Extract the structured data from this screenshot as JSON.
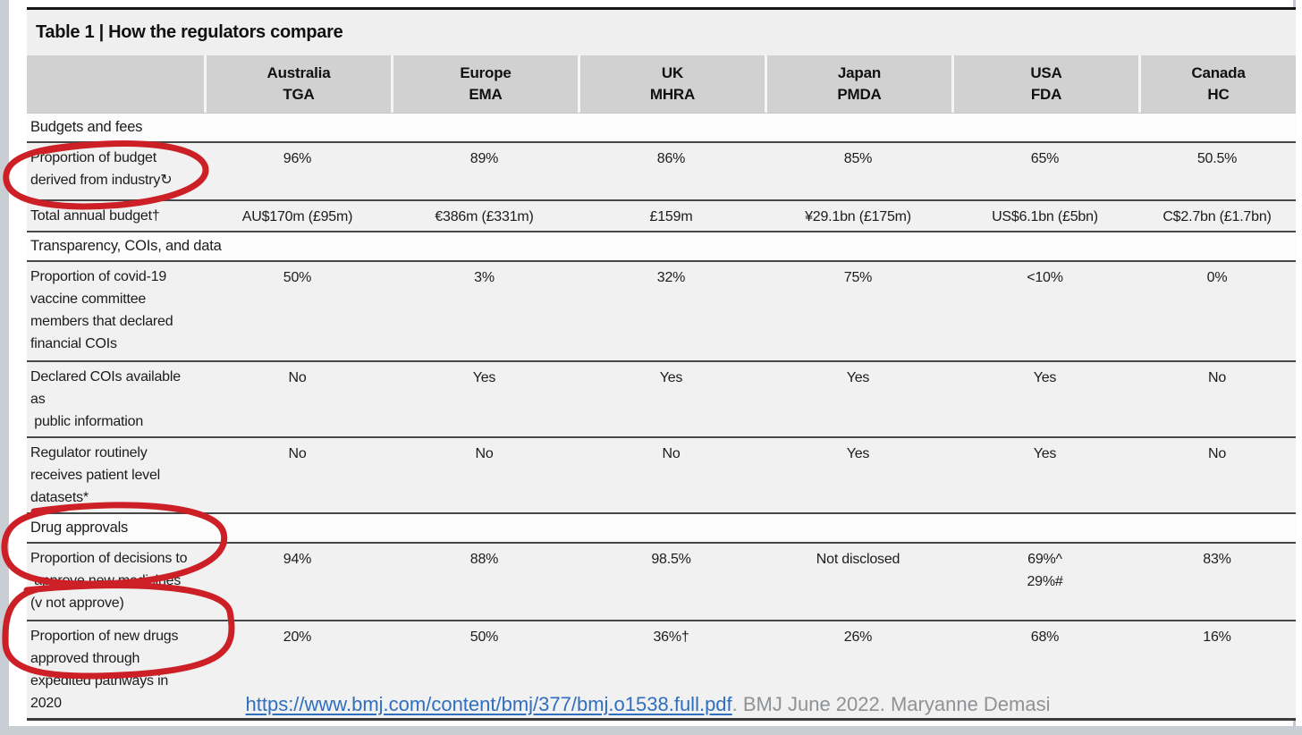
{
  "page": {
    "title": "Table 1 | How the regulators compare",
    "footer": {
      "link_text": "https://www.bmj.com/content/bmj/377/bmj.o1538.full.pdf",
      "suffix_text": ".  BMJ  June 2022. Maryanne Demasi"
    },
    "annotation_color": "#cd2026"
  },
  "table": {
    "columns": [
      {
        "country": "Australia",
        "agency": "TGA"
      },
      {
        "country": "Europe",
        "agency": "EMA"
      },
      {
        "country": "UK",
        "agency": "MHRA"
      },
      {
        "country": "Japan",
        "agency": "PMDA"
      },
      {
        "country": "USA",
        "agency": "FDA"
      },
      {
        "country": "Canada",
        "agency": "HC"
      }
    ],
    "sections": [
      {
        "label": "Budgets and fees",
        "rows": [
          {
            "label": "Proportion of budget\nderived from industry↻",
            "values": [
              "96%",
              "89%",
              "86%",
              "85%",
              "65%",
              "50.5%"
            ],
            "circled": true
          },
          {
            "label": "Total annual budget†",
            "values": [
              "AU$170m (£95m)",
              "€386m (£331m)",
              "£159m",
              "¥29.1bn (£175m)",
              "US$6.1bn (£5bn)",
              "C$2.7bn (£1.7bn)"
            ],
            "circled": false
          }
        ]
      },
      {
        "label": "Transparency, COIs, and data",
        "rows": [
          {
            "label": "Proportion of covid-19\nvaccine committee\nmembers that declared\nfinancial COIs",
            "values": [
              "50%",
              "3%",
              "32%",
              "75%",
              "<10%",
              "0%"
            ],
            "circled": false
          },
          {
            "label": "Declared COIs available as\n public information",
            "values": [
              "No",
              "Yes",
              "Yes",
              "Yes",
              "Yes",
              "No"
            ],
            "circled": false
          },
          {
            "label": "Regulator routinely\nreceives patient level\ndatasets*",
            "values": [
              "No",
              "No",
              "No",
              "Yes",
              "Yes",
              "No"
            ],
            "circled": false
          }
        ]
      },
      {
        "label": "Drug approvals",
        "rows": [
          {
            "label": "Proportion of decisions to\n approve new medicines\n(v not approve)",
            "values": [
              "94%",
              "88%",
              "98.5%",
              "Not disclosed",
              "69%^\n29%#",
              "83%"
            ],
            "circled": true
          },
          {
            "label": "Proportion of new drugs\napproved through\nexpedited pathways in\n2020",
            "values": [
              "20%",
              "50%",
              "36%†",
              "26%",
              "68%",
              "16%"
            ],
            "circled": true
          }
        ]
      }
    ]
  }
}
